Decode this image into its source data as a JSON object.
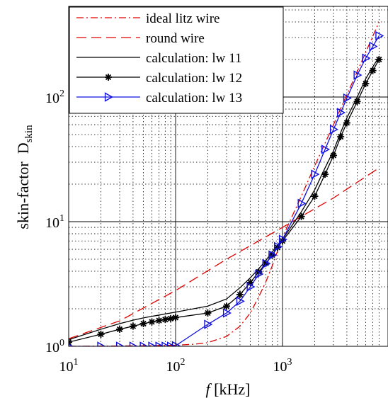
{
  "chart_data": {
    "type": "line",
    "xscale": "log",
    "yscale": "log",
    "xlim": [
      10,
      8000
    ],
    "ylim": [
      1,
      530
    ],
    "grid": true,
    "grid_style": "dotted minor, solid major",
    "legend_position": "top-left",
    "xlabel_italic": "f",
    "xlabel_rest": " [kHz]",
    "ylabel_main": "skin-factor  D",
    "ylabel_sub": "skin",
    "x_ticks": [
      {
        "value": 10,
        "base": "10",
        "exp": "1"
      },
      {
        "value": 100,
        "base": "10",
        "exp": "2"
      },
      {
        "value": 1000,
        "base": "10",
        "exp": "3"
      }
    ],
    "y_ticks": [
      {
        "value": 1,
        "base": "10",
        "exp": "0"
      },
      {
        "value": 10,
        "base": "10",
        "exp": "1"
      },
      {
        "value": 100,
        "base": "10",
        "exp": "2"
      }
    ],
    "series": [
      {
        "name": "ideal litz wire",
        "color": "#e00000",
        "dash": "10 4 2 4",
        "marker": "none",
        "x": [
          10,
          50,
          100,
          150,
          200,
          300,
          400,
          500,
          600,
          700,
          800,
          1000,
          1500,
          2000,
          3000,
          5000,
          8000
        ],
        "y": [
          1.0,
          1.01,
          1.02,
          1.04,
          1.07,
          1.2,
          1.45,
          1.85,
          2.5,
          3.3,
          4.4,
          7.5,
          16,
          28,
          60,
          160,
          400
        ]
      },
      {
        "name": "round wire",
        "color": "#e00000",
        "dash": "14 7",
        "marker": "none",
        "x": [
          10,
          30,
          100,
          300,
          1000,
          3000,
          8000
        ],
        "y": [
          1.15,
          1.6,
          2.8,
          5.0,
          9.0,
          15.5,
          27
        ]
      },
      {
        "name": "calculation: lw 11",
        "color": "#000000",
        "dash": "",
        "marker": "none",
        "x": [
          10,
          20,
          30,
          40,
          50,
          60,
          70,
          80,
          90,
          100,
          200,
          300,
          400,
          500,
          600,
          700,
          800,
          900,
          1000,
          1500,
          2000,
          2500,
          3000,
          3500,
          4000,
          5000,
          6000,
          7000,
          8000
        ],
        "y": [
          1.13,
          1.37,
          1.52,
          1.62,
          1.69,
          1.74,
          1.78,
          1.82,
          1.85,
          1.88,
          2.1,
          2.4,
          2.95,
          3.55,
          4.2,
          4.9,
          5.7,
          6.5,
          7.2,
          12,
          18,
          27,
          37,
          52,
          68,
          100,
          140,
          175,
          210
        ]
      },
      {
        "name": "calculation: lw 12",
        "color": "#000000",
        "dash": "",
        "marker": "star",
        "x": [
          10,
          20,
          30,
          40,
          50,
          60,
          70,
          80,
          90,
          100,
          200,
          300,
          400,
          500,
          600,
          700,
          800,
          900,
          1000,
          1500,
          2000,
          2500,
          3000,
          3500,
          4000,
          5000,
          6000,
          7000,
          8000
        ],
        "y": [
          1.08,
          1.25,
          1.37,
          1.45,
          1.52,
          1.57,
          1.61,
          1.64,
          1.67,
          1.7,
          1.85,
          2.1,
          2.6,
          3.25,
          3.95,
          4.65,
          5.4,
          6.2,
          7.0,
          11,
          16,
          24,
          34,
          48,
          62,
          92,
          128,
          163,
          200
        ]
      },
      {
        "name": "calculation: lw 13",
        "color": "#1010e0",
        "dash": "",
        "marker": "triangle-right",
        "x": [
          10,
          20,
          30,
          40,
          50,
          60,
          70,
          80,
          90,
          100,
          200,
          300,
          400,
          500,
          600,
          700,
          800,
          900,
          1000,
          1500,
          2000,
          2500,
          3000,
          3500,
          4000,
          5000,
          6000,
          7000,
          8000
        ],
        "y": [
          1.0,
          1.0,
          1.0,
          1.0,
          1.0,
          1.0,
          1.0,
          1.0,
          1.0,
          1.01,
          1.5,
          1.85,
          2.3,
          3.0,
          3.8,
          4.6,
          5.4,
          6.3,
          7.2,
          14,
          24,
          38,
          55,
          75,
          98,
          150,
          205,
          255,
          310
        ]
      }
    ]
  }
}
